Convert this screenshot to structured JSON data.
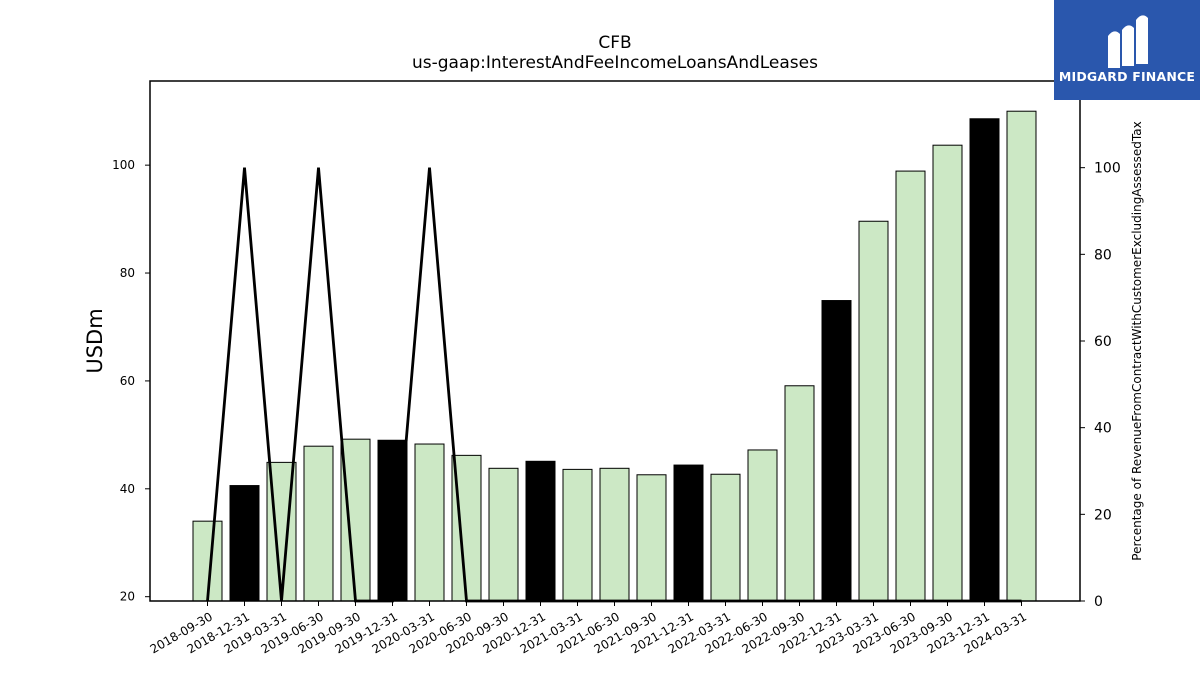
{
  "chart_data": {
    "type": "bar",
    "title": "CFB",
    "subtitle": "us-gaap:InterestAndFeeIncomeLoansAndLeases",
    "ylabel": "USDm",
    "y2label": "Percentage of RevenueFromContractWithCustomerExcludingAssessedTax",
    "ylim": [
      19.2,
      115.6
    ],
    "y2lim": [
      0,
      120
    ],
    "yticks": [
      20,
      40,
      60,
      80,
      100
    ],
    "y2ticks": [
      0,
      20,
      40,
      60,
      80,
      100
    ],
    "categories": [
      "2018-09-30",
      "2018-12-31",
      "2019-03-31",
      "2019-06-30",
      "2019-09-30",
      "2019-12-31",
      "2020-03-31",
      "2020-06-30",
      "2020-09-30",
      "2020-12-31",
      "2021-03-31",
      "2021-06-30",
      "2021-09-30",
      "2021-12-31",
      "2022-03-31",
      "2022-06-30",
      "2022-09-30",
      "2022-12-31",
      "2023-03-31",
      "2023-06-30",
      "2023-09-30",
      "2023-12-31",
      "2024-03-31"
    ],
    "values": [
      34.0,
      40.6,
      44.9,
      47.9,
      49.2,
      49.0,
      48.3,
      46.2,
      43.8,
      45.1,
      43.6,
      43.8,
      42.6,
      44.4,
      42.7,
      47.2,
      59.1,
      74.9,
      89.6,
      98.9,
      103.7,
      108.6,
      110.0
    ],
    "highlight": [
      false,
      true,
      false,
      false,
      false,
      true,
      false,
      false,
      false,
      true,
      false,
      false,
      false,
      true,
      false,
      false,
      false,
      true,
      false,
      false,
      false,
      true,
      false
    ],
    "percent_series": [
      0,
      100,
      0,
      100,
      0,
      0,
      100,
      0,
      0,
      0,
      0,
      0,
      0,
      0,
      0,
      0,
      0,
      0,
      0,
      0,
      0,
      0,
      0
    ],
    "colors": {
      "bar": "#cce8c5",
      "highlight": "#000000",
      "edge": "#000000",
      "line": "#000000"
    }
  },
  "logo": {
    "text": "MIDGARD FINANCE",
    "background": "#2a57ad"
  }
}
